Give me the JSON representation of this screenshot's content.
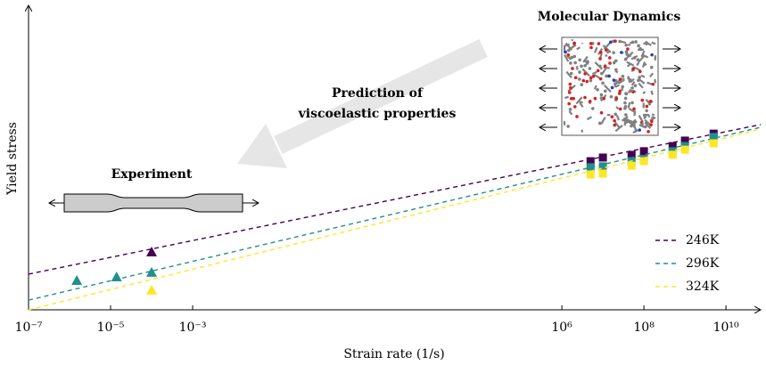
{
  "chart_data": {
    "type": "scatter",
    "x_label": "Strain rate (1/s)",
    "y_label": "Yield stress",
    "annotations": {
      "md": "Molecular Dynamics",
      "prediction": [
        "Prediction of",
        "viscoelastic properties"
      ],
      "experiment": "Experiment"
    },
    "log_x": true,
    "legend": "lower right",
    "xlim": [
      1e-07,
      70000000000.0
    ],
    "ylim": [
      0,
      100
    ],
    "xticks": [
      {
        "value": 1e-07,
        "label": "10⁻⁷"
      },
      {
        "value": 1e-05,
        "label": "10⁻⁵"
      },
      {
        "value": 0.001,
        "label": "10⁻³"
      },
      {
        "value": 1000000.0,
        "label": "10⁶"
      },
      {
        "value": 100000000.0,
        "label": "10⁸"
      },
      {
        "value": 10000000000.0,
        "label": "10¹⁰"
      }
    ],
    "series": [
      {
        "name": "246K",
        "color": "#440154",
        "experiment": {
          "x": [
            0.0001
          ],
          "values": [
            19.1
          ]
        },
        "simulation": {
          "x": [
            5000000.0,
            10000000.0,
            50000000.0,
            100000000.0,
            500000000.0,
            1000000000.0,
            5000000000.0
          ],
          "values": [
            49.1,
            50.3,
            51.2,
            52.4,
            54.1,
            55.9,
            58.2
          ]
        },
        "fit": {
          "x": [
            1e-07,
            70000000000.0
          ],
          "values": [
            11.8,
            61.2
          ]
        }
      },
      {
        "name": "296K",
        "color": "#21908d",
        "experiment": {
          "x": [
            1.5e-06,
            1.4e-05,
            0.0001
          ],
          "values": [
            9.7,
            10.9,
            12.4
          ]
        },
        "simulation": {
          "x": [
            5000000.0,
            10000000.0,
            50000000.0,
            100000000.0,
            500000000.0,
            1000000000.0,
            5000000000.0
          ],
          "values": [
            47.1,
            47.4,
            49.1,
            49.7,
            52.4,
            54.1,
            57.1
          ]
        },
        "fit": {
          "x": [
            1e-07,
            70000000000.0
          ],
          "values": [
            3.2,
            60.3
          ]
        }
      },
      {
        "name": "324K",
        "color": "#fde725",
        "experiment": {
          "x": [
            0.0001
          ],
          "values": [
            6.5
          ]
        },
        "simulation": {
          "x": [
            5000000.0,
            10000000.0,
            50000000.0,
            100000000.0,
            500000000.0,
            1000000000.0,
            5000000000.0
          ],
          "values": [
            44.7,
            45,
            47.6,
            49.1,
            51.2,
            52.9,
            55
          ]
        },
        "fit": {
          "x": [
            1e-07,
            70000000000.0
          ],
          "values": [
            0,
            59.7
          ]
        }
      }
    ]
  }
}
